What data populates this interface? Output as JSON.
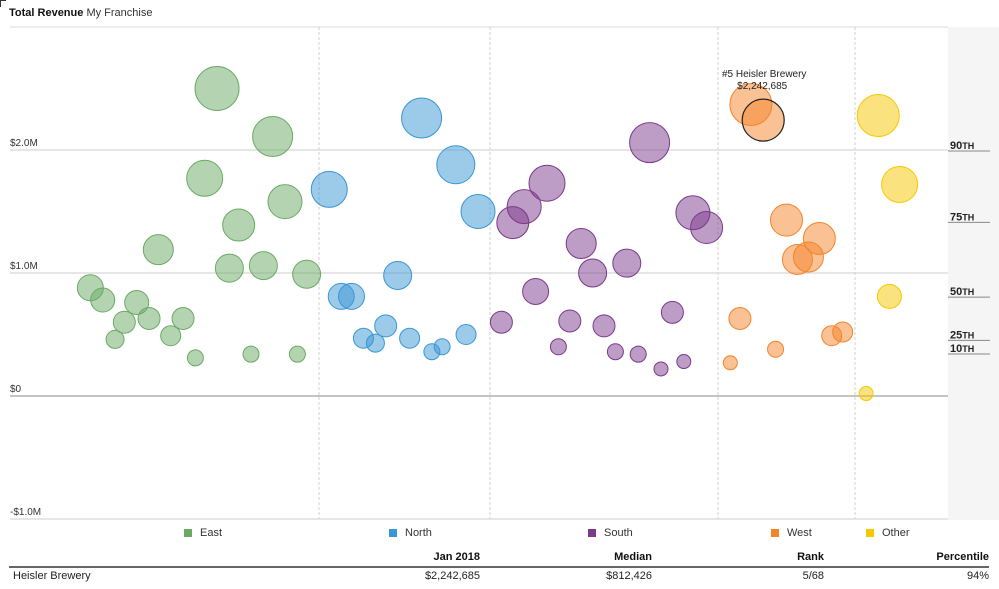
{
  "header": {
    "title_bold": "Total Revenue",
    "title_sub": "My Franchise"
  },
  "chart_data": {
    "type": "scatter",
    "title": "Total Revenue My Franchise",
    "xlabel": "",
    "ylabel": "",
    "ylim": [
      -1000000,
      3000000
    ],
    "y_ticks": [
      {
        "value": 2000000,
        "label": "$2.0M"
      },
      {
        "value": 1000000,
        "label": "$1.0M"
      },
      {
        "value": 0,
        "label": "$0"
      },
      {
        "value": -1000000,
        "label": "-$1.0M"
      }
    ],
    "grid": true,
    "legend_position": "bottom",
    "percentiles": [
      {
        "label": "90",
        "suffix": "TH",
        "value": 2000000
      },
      {
        "label": "75",
        "suffix": "TH",
        "value": 1420000
      },
      {
        "label": "50",
        "suffix": "TH",
        "value": 812426
      },
      {
        "label": "25",
        "suffix": "TH",
        "value": 460000
      },
      {
        "label": "10",
        "suffix": "TH",
        "value": 350000
      }
    ],
    "series": [
      {
        "name": "East",
        "color": "#6aaa64",
        "points": [
          {
            "x": 0.67,
            "y": 2500000,
            "size": 22
          },
          {
            "x": 0.85,
            "y": 2110000,
            "size": 20
          },
          {
            "x": 0.63,
            "y": 1770000,
            "size": 18
          },
          {
            "x": 0.89,
            "y": 1580000,
            "size": 17
          },
          {
            "x": 0.74,
            "y": 1390000,
            "size": 16
          },
          {
            "x": 0.48,
            "y": 1190000,
            "size": 15
          },
          {
            "x": 0.71,
            "y": 1040000,
            "size": 14
          },
          {
            "x": 0.82,
            "y": 1060000,
            "size": 14
          },
          {
            "x": 0.96,
            "y": 990000,
            "size": 14
          },
          {
            "x": 0.26,
            "y": 880000,
            "size": 13
          },
          {
            "x": 0.3,
            "y": 780000,
            "size": 12
          },
          {
            "x": 0.41,
            "y": 760000,
            "size": 12
          },
          {
            "x": 0.45,
            "y": 630000,
            "size": 11
          },
          {
            "x": 0.37,
            "y": 600000,
            "size": 11
          },
          {
            "x": 0.56,
            "y": 630000,
            "size": 11
          },
          {
            "x": 0.52,
            "y": 490000,
            "size": 10
          },
          {
            "x": 0.34,
            "y": 460000,
            "size": 9
          },
          {
            "x": 0.6,
            "y": 310000,
            "size": 8
          },
          {
            "x": 0.78,
            "y": 340000,
            "size": 8
          },
          {
            "x": 0.93,
            "y": 340000,
            "size": 8
          }
        ]
      },
      {
        "name": "North",
        "color": "#3a96d4",
        "points": [
          {
            "x": 0.6,
            "y": 2260000,
            "size": 20
          },
          {
            "x": 0.8,
            "y": 1880000,
            "size": 19
          },
          {
            "x": 0.06,
            "y": 1680000,
            "size": 18
          },
          {
            "x": 0.93,
            "y": 1500000,
            "size": 17
          },
          {
            "x": 0.46,
            "y": 980000,
            "size": 14
          },
          {
            "x": 0.13,
            "y": 810000,
            "size": 13
          },
          {
            "x": 0.19,
            "y": 810000,
            "size": 13
          },
          {
            "x": 0.39,
            "y": 570000,
            "size": 11
          },
          {
            "x": 0.26,
            "y": 470000,
            "size": 10
          },
          {
            "x": 0.33,
            "y": 430000,
            "size": 9
          },
          {
            "x": 0.53,
            "y": 470000,
            "size": 10
          },
          {
            "x": 0.86,
            "y": 500000,
            "size": 10
          },
          {
            "x": 0.66,
            "y": 360000,
            "size": 8
          },
          {
            "x": 0.72,
            "y": 400000,
            "size": 8
          }
        ]
      },
      {
        "name": "South",
        "color": "#7b3a8c",
        "points": [
          {
            "x": 0.7,
            "y": 2060000,
            "size": 20
          },
          {
            "x": 0.25,
            "y": 1730000,
            "size": 18
          },
          {
            "x": 0.15,
            "y": 1540000,
            "size": 17
          },
          {
            "x": 0.1,
            "y": 1410000,
            "size": 16
          },
          {
            "x": 0.89,
            "y": 1490000,
            "size": 17
          },
          {
            "x": 0.95,
            "y": 1370000,
            "size": 16
          },
          {
            "x": 0.4,
            "y": 1240000,
            "size": 15
          },
          {
            "x": 0.6,
            "y": 1080000,
            "size": 14
          },
          {
            "x": 0.45,
            "y": 1000000,
            "size": 14
          },
          {
            "x": 0.2,
            "y": 850000,
            "size": 13
          },
          {
            "x": 0.8,
            "y": 680000,
            "size": 11
          },
          {
            "x": 0.05,
            "y": 600000,
            "size": 11
          },
          {
            "x": 0.35,
            "y": 610000,
            "size": 11
          },
          {
            "x": 0.5,
            "y": 570000,
            "size": 11
          },
          {
            "x": 0.3,
            "y": 400000,
            "size": 8
          },
          {
            "x": 0.55,
            "y": 360000,
            "size": 8
          },
          {
            "x": 0.65,
            "y": 340000,
            "size": 8
          },
          {
            "x": 0.75,
            "y": 220000,
            "size": 7
          },
          {
            "x": 0.85,
            "y": 280000,
            "size": 7
          }
        ]
      },
      {
        "name": "West",
        "color": "#f5842a",
        "points": [
          {
            "x": 0.24,
            "y": 2370000,
            "size": 21
          },
          {
            "x": 0.33,
            "y": 2242685,
            "size": 21,
            "highlight": true,
            "label": "#5 Heisler Brewery",
            "value_label": "$2,242,685"
          },
          {
            "x": 0.5,
            "y": 1430000,
            "size": 16
          },
          {
            "x": 0.74,
            "y": 1280000,
            "size": 16
          },
          {
            "x": 0.58,
            "y": 1110000,
            "size": 15
          },
          {
            "x": 0.66,
            "y": 1130000,
            "size": 15
          },
          {
            "x": 0.16,
            "y": 630000,
            "size": 11
          },
          {
            "x": 0.42,
            "y": 380000,
            "size": 8
          },
          {
            "x": 0.09,
            "y": 270000,
            "size": 7
          },
          {
            "x": 0.83,
            "y": 490000,
            "size": 10
          },
          {
            "x": 0.91,
            "y": 520000,
            "size": 10
          }
        ]
      },
      {
        "name": "Other",
        "color": "#f5c800",
        "points": [
          {
            "x": 0.25,
            "y": 2280000,
            "size": 21
          },
          {
            "x": 0.48,
            "y": 1720000,
            "size": 18
          },
          {
            "x": 0.37,
            "y": 810000,
            "size": 12
          },
          {
            "x": 0.12,
            "y": 20000,
            "size": 7
          }
        ]
      }
    ]
  },
  "legend": [
    {
      "name": "East",
      "color": "#6aaa64"
    },
    {
      "name": "North",
      "color": "#3a96d4"
    },
    {
      "name": "South",
      "color": "#7b3a8c"
    },
    {
      "name": "West",
      "color": "#f5842a"
    },
    {
      "name": "Other",
      "color": "#f5c800"
    }
  ],
  "summary": {
    "headers": {
      "period": "Jan 2018",
      "median": "Median",
      "rank": "Rank",
      "percentile": "Percentile"
    },
    "row": {
      "name": "Heisler Brewery",
      "period": "$2,242,685",
      "median": "$812,426",
      "rank": "5/68",
      "percentile": "94%"
    }
  }
}
